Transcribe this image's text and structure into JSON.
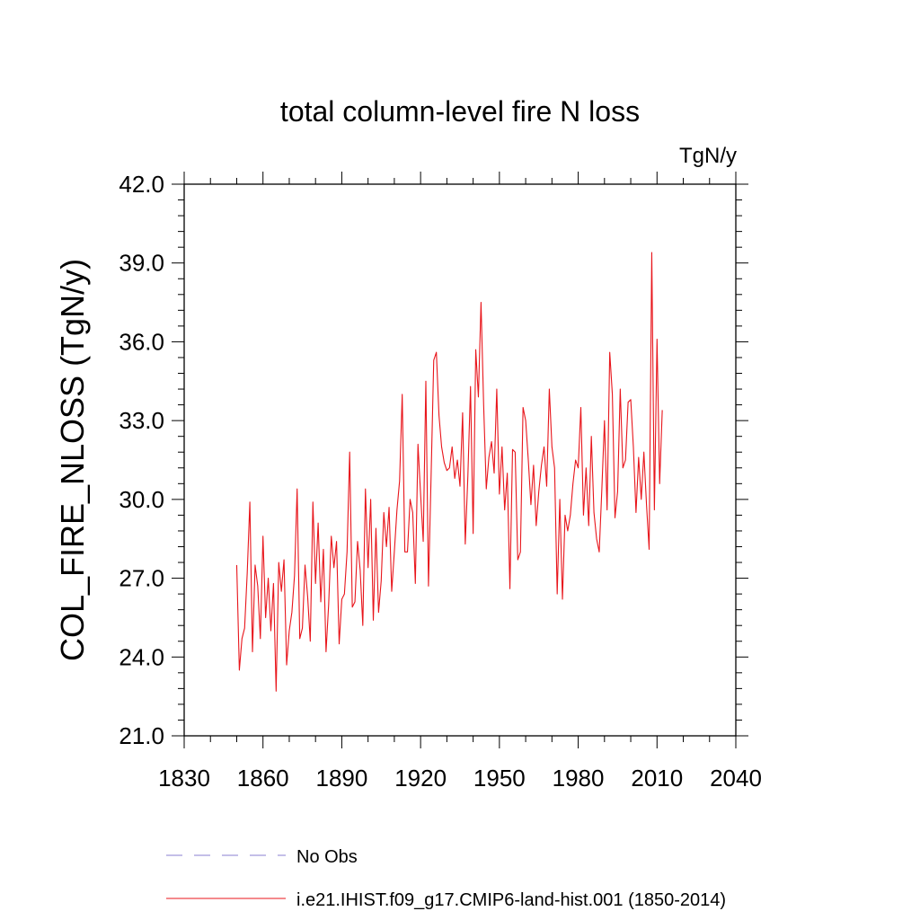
{
  "chart_data": {
    "type": "line",
    "title": "total column-level fire N loss",
    "units_label": "TgN/y",
    "ylabel": "COL_FIRE_NLOSS  (TgN/y)",
    "xlabel": "",
    "xlim": [
      1830,
      2040
    ],
    "ylim": [
      21.0,
      42.0
    ],
    "x_ticks": [
      1830,
      1860,
      1890,
      1920,
      1950,
      1980,
      2010,
      2040
    ],
    "x_tick_labels": [
      "1830",
      "1860",
      "1890",
      "1920",
      "1950",
      "1980",
      "2010",
      "2040"
    ],
    "y_ticks": [
      21.0,
      24.0,
      27.0,
      30.0,
      33.0,
      36.0,
      39.0,
      42.0
    ],
    "y_tick_labels": [
      "21.0",
      "24.0",
      "27.0",
      "30.0",
      "33.0",
      "36.0",
      "39.0",
      "42.0"
    ],
    "grid": false,
    "legend_placement": "bottom",
    "legend": [
      {
        "label": "No Obs",
        "color": "#8a7fd0",
        "style": "dashed"
      },
      {
        "label": "i.e21.IHIST.f09_g17.CMIP6-land-hist.001 (1850-2014)",
        "color": "#e8151b",
        "style": "solid"
      }
    ],
    "series": [
      {
        "name": "i.e21.IHIST.f09_g17.CMIP6-land-hist.001 (1850-2014)",
        "color": "#e8151b",
        "x_start": 1850,
        "x_step": 1,
        "values": [
          27.5,
          23.5,
          24.7,
          25.1,
          27.2,
          29.9,
          24.2,
          27.5,
          26.7,
          24.7,
          28.6,
          25.5,
          27.0,
          25.0,
          26.8,
          22.7,
          27.6,
          26.5,
          27.7,
          23.7,
          25.0,
          25.7,
          27.1,
          30.4,
          24.7,
          25.1,
          27.5,
          26.3,
          24.6,
          29.9,
          26.8,
          29.1,
          26.1,
          28.1,
          24.2,
          26.0,
          28.6,
          27.4,
          28.4,
          24.5,
          26.2,
          26.4,
          28.0,
          31.8,
          25.9,
          26.1,
          28.4,
          27.3,
          25.2,
          30.4,
          27.4,
          30.0,
          25.4,
          28.9,
          25.7,
          26.9,
          29.5,
          28.2,
          29.7,
          26.5,
          28.0,
          29.6,
          30.7,
          34.0,
          28.0,
          28.0,
          30.0,
          29.5,
          26.8,
          32.1,
          30.2,
          28.4,
          34.5,
          26.7,
          30.9,
          35.3,
          35.6,
          33.2,
          32.0,
          31.4,
          31.1,
          31.2,
          32.0,
          30.8,
          31.5,
          30.5,
          33.3,
          28.3,
          30.9,
          34.3,
          28.7,
          35.7,
          33.9,
          37.5,
          33.6,
          30.4,
          31.6,
          32.2,
          31.0,
          34.2,
          30.2,
          32.0,
          29.6,
          31.0,
          26.6,
          31.9,
          31.8,
          27.7,
          28.0,
          33.5,
          33.0,
          31.5,
          29.8,
          31.3,
          29.0,
          30.3,
          31.3,
          32.0,
          30.5,
          34.2,
          32.0,
          31.2,
          26.4,
          30.0,
          26.2,
          29.4,
          28.8,
          29.4,
          30.6,
          31.5,
          31.2,
          33.5,
          29.4,
          31.2,
          29.0,
          32.4,
          29.5,
          28.5,
          28.0,
          30.4,
          33.0,
          29.6,
          35.6,
          34.0,
          29.3,
          30.3,
          34.2,
          31.2,
          31.5,
          33.7,
          33.8,
          32.0,
          29.5,
          31.6,
          30.0,
          31.8,
          29.8,
          28.1,
          39.4,
          29.6,
          36.1,
          30.6,
          33.4
        ]
      }
    ]
  }
}
